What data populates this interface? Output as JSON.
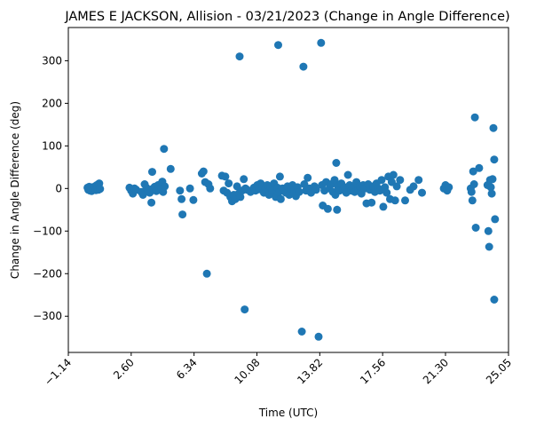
{
  "chart_data": {
    "type": "scatter",
    "title": "JAMES E JACKSON, Allision - 03/21/2023 (Change in Angle Difference)",
    "xlabel": "Time (UTC)",
    "ylabel": "Change in Angle Difference (deg)",
    "xlim": [
      -1.14,
      25.05
    ],
    "ylim": [
      -385,
      378
    ],
    "x_ticks": [
      -1.14,
      2.6,
      6.34,
      10.08,
      13.82,
      17.56,
      21.3,
      25.05
    ],
    "x_tick_labels": [
      "−1.14",
      "2.60",
      "6.34",
      "10.08",
      "13.82",
      "17.56",
      "21.30",
      "25.05"
    ],
    "y_ticks": [
      -300,
      -200,
      -100,
      0,
      100,
      200,
      300
    ],
    "y_tick_labels": [
      "−300",
      "−200",
      "−100",
      "0",
      "100",
      "200",
      "300"
    ],
    "color": "#1f77b4",
    "grid": false,
    "points": [
      {
        "x": 0.0,
        "y": 2
      },
      {
        "x": 0.05,
        "y": -3
      },
      {
        "x": 0.1,
        "y": 4
      },
      {
        "x": 0.15,
        "y": -5
      },
      {
        "x": 0.2,
        "y": 0
      },
      {
        "x": 0.25,
        "y": -6
      },
      {
        "x": 0.3,
        "y": 3
      },
      {
        "x": 0.35,
        "y": -2
      },
      {
        "x": 0.45,
        "y": 5
      },
      {
        "x": 0.5,
        "y": -4
      },
      {
        "x": 0.55,
        "y": 8
      },
      {
        "x": 0.6,
        "y": 1
      },
      {
        "x": 0.65,
        "y": -3
      },
      {
        "x": 0.7,
        "y": 12
      },
      {
        "x": 0.75,
        "y": -1
      },
      {
        "x": 2.5,
        "y": 2
      },
      {
        "x": 2.6,
        "y": -5
      },
      {
        "x": 2.7,
        "y": -12
      },
      {
        "x": 2.8,
        "y": 0
      },
      {
        "x": 2.9,
        "y": -3
      },
      {
        "x": 3.2,
        "y": -8
      },
      {
        "x": 3.3,
        "y": -15
      },
      {
        "x": 3.4,
        "y": 10
      },
      {
        "x": 3.5,
        "y": 2
      },
      {
        "x": 3.6,
        "y": -5
      },
      {
        "x": 3.7,
        "y": -10
      },
      {
        "x": 3.8,
        "y": -33
      },
      {
        "x": 3.85,
        "y": 39
      },
      {
        "x": 3.9,
        "y": 0
      },
      {
        "x": 4.0,
        "y": 4
      },
      {
        "x": 4.1,
        "y": -6
      },
      {
        "x": 4.2,
        "y": 8
      },
      {
        "x": 4.3,
        "y": -3
      },
      {
        "x": 4.35,
        "y": 10
      },
      {
        "x": 4.4,
        "y": 0
      },
      {
        "x": 4.45,
        "y": 16
      },
      {
        "x": 4.5,
        "y": -8
      },
      {
        "x": 4.55,
        "y": 93
      },
      {
        "x": 4.6,
        "y": 5
      },
      {
        "x": 4.95,
        "y": 46
      },
      {
        "x": 5.5,
        "y": -5
      },
      {
        "x": 5.6,
        "y": -25
      },
      {
        "x": 5.65,
        "y": -61
      },
      {
        "x": 6.1,
        "y": 0
      },
      {
        "x": 6.3,
        "y": -27
      },
      {
        "x": 6.8,
        "y": 35
      },
      {
        "x": 6.9,
        "y": 40
      },
      {
        "x": 7.0,
        "y": 15
      },
      {
        "x": 7.1,
        "y": -200
      },
      {
        "x": 7.2,
        "y": 10
      },
      {
        "x": 7.3,
        "y": 0
      },
      {
        "x": 8.0,
        "y": 30
      },
      {
        "x": 8.1,
        "y": -5
      },
      {
        "x": 8.2,
        "y": 28
      },
      {
        "x": 8.3,
        "y": -10
      },
      {
        "x": 8.4,
        "y": 12
      },
      {
        "x": 8.5,
        "y": -20
      },
      {
        "x": 8.6,
        "y": -30
      },
      {
        "x": 8.7,
        "y": -15
      },
      {
        "x": 8.8,
        "y": -25
      },
      {
        "x": 8.9,
        "y": 5
      },
      {
        "x": 9.0,
        "y": -12
      },
      {
        "x": 9.05,
        "y": 310
      },
      {
        "x": 9.1,
        "y": -20
      },
      {
        "x": 9.2,
        "y": -5
      },
      {
        "x": 9.3,
        "y": 22
      },
      {
        "x": 9.35,
        "y": -284
      },
      {
        "x": 9.4,
        "y": 0
      },
      {
        "x": 9.5,
        "y": -3
      },
      {
        "x": 9.7,
        "y": -8
      },
      {
        "x": 9.9,
        "y": 2
      },
      {
        "x": 10.0,
        "y": -5
      },
      {
        "x": 10.1,
        "y": 8
      },
      {
        "x": 10.2,
        "y": -2
      },
      {
        "x": 10.3,
        "y": 12
      },
      {
        "x": 10.4,
        "y": 5
      },
      {
        "x": 10.5,
        "y": -10
      },
      {
        "x": 10.6,
        "y": 0
      },
      {
        "x": 10.7,
        "y": 8
      },
      {
        "x": 10.8,
        "y": -15
      },
      {
        "x": 10.9,
        "y": 3
      },
      {
        "x": 11.0,
        "y": -5
      },
      {
        "x": 11.1,
        "y": 12
      },
      {
        "x": 11.2,
        "y": -20
      },
      {
        "x": 11.3,
        "y": 2
      },
      {
        "x": 11.35,
        "y": 337
      },
      {
        "x": 11.4,
        "y": -8
      },
      {
        "x": 11.45,
        "y": 28
      },
      {
        "x": 11.5,
        "y": -25
      },
      {
        "x": 11.6,
        "y": 0
      },
      {
        "x": 11.8,
        "y": -10
      },
      {
        "x": 11.9,
        "y": 5
      },
      {
        "x": 12.0,
        "y": -15
      },
      {
        "x": 12.1,
        "y": 0
      },
      {
        "x": 12.2,
        "y": 8
      },
      {
        "x": 12.3,
        "y": -5
      },
      {
        "x": 12.4,
        "y": -18
      },
      {
        "x": 12.5,
        "y": 3
      },
      {
        "x": 12.6,
        "y": -8
      },
      {
        "x": 12.75,
        "y": -336
      },
      {
        "x": 12.85,
        "y": 286
      },
      {
        "x": 12.9,
        "y": 10
      },
      {
        "x": 13.0,
        "y": -5
      },
      {
        "x": 13.1,
        "y": 25
      },
      {
        "x": 13.2,
        "y": 0
      },
      {
        "x": 13.3,
        "y": -10
      },
      {
        "x": 13.5,
        "y": 5
      },
      {
        "x": 13.6,
        "y": -3
      },
      {
        "x": 13.75,
        "y": -348
      },
      {
        "x": 13.9,
        "y": 342
      },
      {
        "x": 13.95,
        "y": 8
      },
      {
        "x": 14.0,
        "y": -40
      },
      {
        "x": 14.1,
        "y": -5
      },
      {
        "x": 14.2,
        "y": 15
      },
      {
        "x": 14.3,
        "y": -48
      },
      {
        "x": 14.4,
        "y": 0
      },
      {
        "x": 14.5,
        "y": 10
      },
      {
        "x": 14.6,
        "y": -8
      },
      {
        "x": 14.7,
        "y": 20
      },
      {
        "x": 14.75,
        "y": -15
      },
      {
        "x": 14.8,
        "y": 60
      },
      {
        "x": 14.85,
        "y": -50
      },
      {
        "x": 14.9,
        "y": 5
      },
      {
        "x": 15.0,
        "y": -5
      },
      {
        "x": 15.1,
        "y": 12
      },
      {
        "x": 15.2,
        "y": -3
      },
      {
        "x": 15.3,
        "y": 3
      },
      {
        "x": 15.4,
        "y": -10
      },
      {
        "x": 15.5,
        "y": 32
      },
      {
        "x": 15.6,
        "y": 8
      },
      {
        "x": 15.7,
        "y": -5
      },
      {
        "x": 15.8,
        "y": 2
      },
      {
        "x": 15.9,
        "y": -8
      },
      {
        "x": 16.0,
        "y": 15
      },
      {
        "x": 16.1,
        "y": -2
      },
      {
        "x": 16.2,
        "y": 5
      },
      {
        "x": 16.3,
        "y": -12
      },
      {
        "x": 16.4,
        "y": 8
      },
      {
        "x": 16.5,
        "y": 0
      },
      {
        "x": 16.6,
        "y": -35
      },
      {
        "x": 16.7,
        "y": 10
      },
      {
        "x": 16.8,
        "y": -3
      },
      {
        "x": 16.9,
        "y": -33
      },
      {
        "x": 17.0,
        "y": 5
      },
      {
        "x": 17.1,
        "y": -8
      },
      {
        "x": 17.2,
        "y": 12
      },
      {
        "x": 17.3,
        "y": 0
      },
      {
        "x": 17.4,
        "y": -5
      },
      {
        "x": 17.5,
        "y": 20
      },
      {
        "x": 17.6,
        "y": -43
      },
      {
        "x": 17.7,
        "y": 3
      },
      {
        "x": 17.8,
        "y": -10
      },
      {
        "x": 17.9,
        "y": 28
      },
      {
        "x": 18.0,
        "y": -25
      },
      {
        "x": 18.1,
        "y": 15
      },
      {
        "x": 18.2,
        "y": 32
      },
      {
        "x": 18.3,
        "y": -28
      },
      {
        "x": 18.4,
        "y": 5
      },
      {
        "x": 18.6,
        "y": 20
      },
      {
        "x": 18.9,
        "y": -28
      },
      {
        "x": 19.2,
        "y": -3
      },
      {
        "x": 19.4,
        "y": 5
      },
      {
        "x": 19.7,
        "y": 20
      },
      {
        "x": 19.9,
        "y": -10
      },
      {
        "x": 21.2,
        "y": 0
      },
      {
        "x": 21.3,
        "y": 8
      },
      {
        "x": 21.4,
        "y": -5
      },
      {
        "x": 21.5,
        "y": 3
      },
      {
        "x": 22.8,
        "y": 0
      },
      {
        "x": 22.85,
        "y": -8
      },
      {
        "x": 22.9,
        "y": -28
      },
      {
        "x": 22.95,
        "y": 40
      },
      {
        "x": 23.0,
        "y": 10
      },
      {
        "x": 23.05,
        "y": 167
      },
      {
        "x": 23.1,
        "y": -92
      },
      {
        "x": 23.3,
        "y": 48
      },
      {
        "x": 23.8,
        "y": 8
      },
      {
        "x": 23.85,
        "y": -100
      },
      {
        "x": 23.9,
        "y": -137
      },
      {
        "x": 23.95,
        "y": 20
      },
      {
        "x": 24.0,
        "y": 3
      },
      {
        "x": 24.05,
        "y": -12
      },
      {
        "x": 24.1,
        "y": 22
      },
      {
        "x": 24.15,
        "y": 142
      },
      {
        "x": 24.2,
        "y": 68
      },
      {
        "x": 24.25,
        "y": -72
      },
      {
        "x": 24.2,
        "y": -261
      }
    ]
  }
}
